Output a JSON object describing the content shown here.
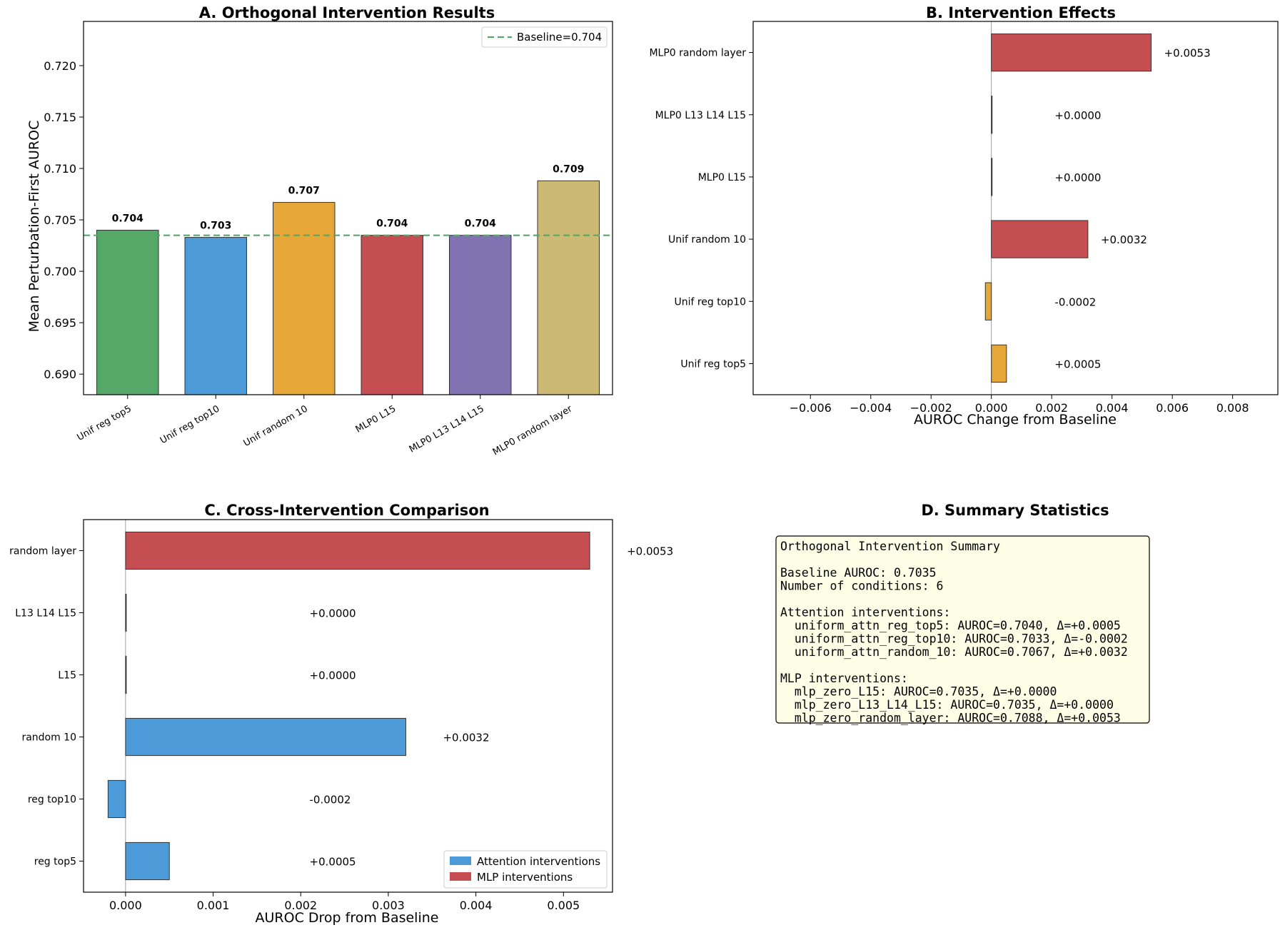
{
  "chart_data": [
    {
      "id": "A",
      "type": "bar",
      "title": "A. Orthogonal Intervention Results",
      "ylabel": "Mean Perturbation-First AUROC",
      "xlabel": "",
      "categories": [
        "Unif reg top5",
        "Unif reg top10",
        "Unif random 10",
        "MLP0 L15",
        "MLP0 L13 L14 L15",
        "MLP0 random layer"
      ],
      "values": [
        0.704,
        0.7033,
        0.7067,
        0.7035,
        0.7035,
        0.7088
      ],
      "value_labels": [
        "0.704",
        "0.703",
        "0.707",
        "0.704",
        "0.704",
        "0.709"
      ],
      "colors": [
        "#55a868",
        "#4c9ad8",
        "#e6a638",
        "#c44e52",
        "#8172b2",
        "#ccb974"
      ],
      "ylim": [
        0.688,
        0.7243
      ],
      "yticks": [
        0.69,
        0.695,
        0.7,
        0.705,
        0.71,
        0.715,
        0.72
      ],
      "ytick_labels": [
        "0.690",
        "0.695",
        "0.700",
        "0.705",
        "0.710",
        "0.715",
        "0.720"
      ],
      "baseline": 0.7035,
      "baseline_label": "Baseline=0.704",
      "legend_position": "upper-right"
    },
    {
      "id": "B",
      "type": "barh",
      "title": "B. Intervention Effects",
      "xlabel": "AUROC Change from Baseline",
      "categories": [
        "Unif reg top5",
        "Unif reg top10",
        "Unif random 10",
        "MLP0 L15",
        "MLP0 L13 L14 L15",
        "MLP0 random layer"
      ],
      "values": [
        0.0005,
        -0.0002,
        0.0032,
        0.0,
        0.0,
        0.0053
      ],
      "value_labels": [
        "+0.0005",
        "-0.0002",
        "+0.0032",
        "+0.0000",
        "+0.0000",
        "+0.0053"
      ],
      "colors": [
        "#e6a638",
        "#e6a638",
        "#c44e52",
        "#c44e52",
        "#c44e52",
        "#c44e52"
      ],
      "xlim": [
        -0.0079,
        0.0095
      ],
      "xticks": [
        -0.006,
        -0.004,
        -0.002,
        0.0,
        0.002,
        0.004,
        0.006,
        0.008
      ],
      "xtick_labels": [
        "−0.006",
        "−0.004",
        "−0.002",
        "0.000",
        "0.002",
        "0.004",
        "0.006",
        "0.008"
      ]
    },
    {
      "id": "C",
      "type": "barh",
      "title": "C. Cross-Intervention Comparison",
      "xlabel": "AUROC Drop from Baseline",
      "categories": [
        "reg top5",
        "reg top10",
        "random 10",
        "L15",
        "L13 L14 L15",
        "random layer"
      ],
      "values": [
        0.0005,
        -0.0002,
        0.0032,
        0.0,
        0.0,
        0.0053
      ],
      "value_labels": [
        "+0.0005",
        "-0.0002",
        "+0.0032",
        "+0.0000",
        "+0.0000",
        "+0.0053"
      ],
      "groups": [
        "Attention interventions",
        "Attention interventions",
        "Attention interventions",
        "MLP interventions",
        "MLP interventions",
        "MLP interventions"
      ],
      "colors": [
        "#4c9ad8",
        "#4c9ad8",
        "#4c9ad8",
        "#c44e52",
        "#c44e52",
        "#c44e52"
      ],
      "xlim": [
        -0.00048,
        0.00556
      ],
      "xticks": [
        0.0,
        0.001,
        0.002,
        0.003,
        0.004,
        0.005
      ],
      "xtick_labels": [
        "0.000",
        "0.001",
        "0.002",
        "0.003",
        "0.004",
        "0.005"
      ],
      "legend": [
        {
          "label": "Attention interventions",
          "color": "#4c9ad8"
        },
        {
          "label": "MLP interventions",
          "color": "#c44e52"
        }
      ],
      "legend_position": "lower-right"
    }
  ],
  "summary": {
    "title": "D. Summary Statistics",
    "box_color": "#fefee6",
    "lines": [
      "Orthogonal Intervention Summary",
      "",
      "Baseline AUROC: 0.7035",
      "Number of conditions: 6",
      "",
      "Attention interventions:",
      "  uniform_attn_reg_top5: AUROC=0.7040, Δ=+0.0005",
      "  uniform_attn_reg_top10: AUROC=0.7033, Δ=-0.0002",
      "  uniform_attn_random_10: AUROC=0.7067, Δ=+0.0032",
      "",
      "MLP interventions:",
      "  mlp_zero_L15: AUROC=0.7035, Δ=+0.0000",
      "  mlp_zero_L13_L14_L15: AUROC=0.7035, Δ=+0.0000",
      "  mlp_zero_random_layer: AUROC=0.7088, Δ=+0.0053"
    ]
  }
}
